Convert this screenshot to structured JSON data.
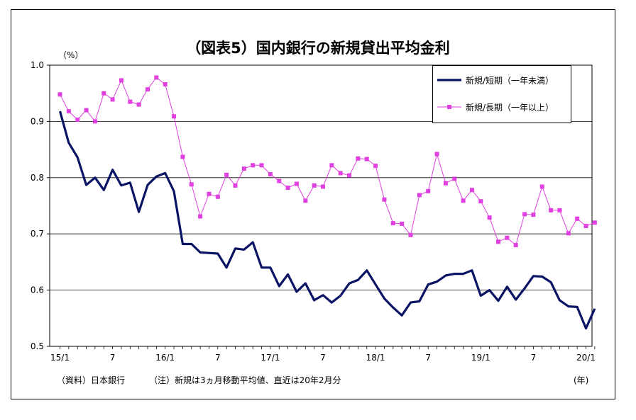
{
  "chart_data": {
    "type": "line",
    "title": "（図表5）国内銀行の新規貸出平均金利",
    "y_unit": "（%）",
    "x_unit": "(年)",
    "ylim": [
      0.5,
      1.0
    ],
    "yticks": [
      "0.5",
      "0.6",
      "0.7",
      "0.8",
      "0.9",
      "1.0"
    ],
    "xticks": [
      {
        "index": 0,
        "label": "15/1"
      },
      {
        "index": 6,
        "label": "7"
      },
      {
        "index": 12,
        "label": "16/1"
      },
      {
        "index": 18,
        "label": "7"
      },
      {
        "index": 24,
        "label": "17/1"
      },
      {
        "index": 30,
        "label": "7"
      },
      {
        "index": 36,
        "label": "18/1"
      },
      {
        "index": 42,
        "label": "7"
      },
      {
        "index": 48,
        "label": "19/1"
      },
      {
        "index": 54,
        "label": "7"
      },
      {
        "index": 60,
        "label": "20/1"
      }
    ],
    "grid": true,
    "legend_position": "top-right",
    "series": [
      {
        "name": "新規/短期（一年未満）",
        "color": "#0a1464",
        "values": [
          0.918,
          0.862,
          0.836,
          0.787,
          0.8,
          0.778,
          0.814,
          0.786,
          0.791,
          0.739,
          0.787,
          0.802,
          0.808,
          0.776,
          0.682,
          0.682,
          0.667,
          0.666,
          0.665,
          0.64,
          0.674,
          0.672,
          0.685,
          0.64,
          0.64,
          0.607,
          0.628,
          0.597,
          0.612,
          0.582,
          0.591,
          0.578,
          0.59,
          0.612,
          0.618,
          0.635,
          0.61,
          0.585,
          0.569,
          0.555,
          0.578,
          0.58,
          0.61,
          0.615,
          0.626,
          0.629,
          0.629,
          0.635,
          0.59,
          0.6,
          0.581,
          0.606,
          0.583,
          0.603,
          0.625,
          0.624,
          0.614,
          0.582,
          0.571,
          0.57,
          0.532,
          0.567
        ]
      },
      {
        "name": "新規/長期（一年以上）",
        "color": "#e040e0",
        "values": [
          0.948,
          0.918,
          0.903,
          0.92,
          0.9,
          0.95,
          0.939,
          0.973,
          0.935,
          0.93,
          0.957,
          0.978,
          0.966,
          0.909,
          0.837,
          0.788,
          0.731,
          0.771,
          0.766,
          0.805,
          0.786,
          0.816,
          0.822,
          0.822,
          0.806,
          0.794,
          0.782,
          0.789,
          0.759,
          0.786,
          0.784,
          0.822,
          0.808,
          0.804,
          0.834,
          0.833,
          0.821,
          0.761,
          0.719,
          0.718,
          0.698,
          0.769,
          0.776,
          0.842,
          0.79,
          0.798,
          0.759,
          0.778,
          0.758,
          0.729,
          0.686,
          0.693,
          0.68,
          0.735,
          0.734,
          0.784,
          0.742,
          0.742,
          0.701,
          0.727,
          0.714,
          0.72
        ]
      }
    ]
  },
  "footnote_source": "（資料）日本銀行",
  "footnote_note": "（注）新規は3ヵ月移動平均値、直近は20年2月分"
}
